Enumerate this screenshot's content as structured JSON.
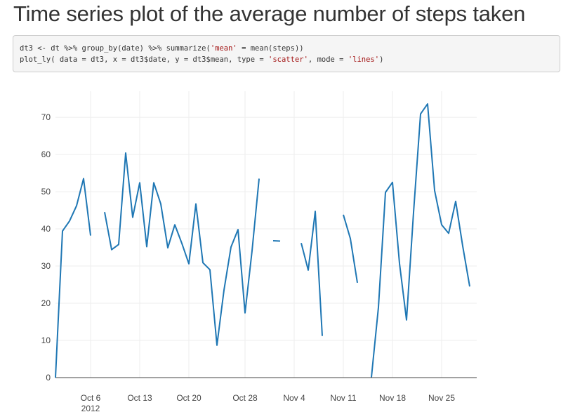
{
  "page": {
    "title": "Time series plot of the average number of steps taken"
  },
  "code": {
    "line1": {
      "a": "dt3 <- dt %>% group_by(date) %>% summarize(",
      "s1": "'mean'",
      "b": " = mean(steps))"
    },
    "line2": {
      "a": "plot_ly( data = dt3, x = dt3$date, y = dt3$mean, type = ",
      "s1": "'scatter'",
      "b": ", mode = ",
      "s2": "'lines'",
      "c": ")"
    }
  },
  "chart_data": {
    "type": "line",
    "title": "",
    "xlabel": "",
    "ylabel": "",
    "grid": true,
    "line_color": "#1f77b4",
    "x_range": [
      "2012-10-01",
      "2012-11-30"
    ],
    "ylim": [
      0,
      77
    ],
    "y_ticks": [
      0,
      10,
      20,
      30,
      40,
      50,
      60,
      70
    ],
    "x_ticks": [
      {
        "date": "2012-10-06",
        "label": "Oct 6",
        "sublabel": "2012"
      },
      {
        "date": "2012-10-13",
        "label": "Oct 13"
      },
      {
        "date": "2012-10-20",
        "label": "Oct 20"
      },
      {
        "date": "2012-10-28",
        "label": "Oct 28"
      },
      {
        "date": "2012-11-04",
        "label": "Nov 4"
      },
      {
        "date": "2012-11-11",
        "label": "Nov 11"
      },
      {
        "date": "2012-11-18",
        "label": "Nov 18"
      },
      {
        "date": "2012-11-25",
        "label": "Nov 25"
      }
    ],
    "series": [
      {
        "x": [
          "2012-10-01",
          "2012-10-02",
          "2012-10-03",
          "2012-10-04",
          "2012-10-05",
          "2012-10-06",
          "2012-10-07",
          "2012-10-08",
          "2012-10-09",
          "2012-10-10",
          "2012-10-11",
          "2012-10-12",
          "2012-10-13",
          "2012-10-14",
          "2012-10-15",
          "2012-10-16",
          "2012-10-17",
          "2012-10-18",
          "2012-10-19",
          "2012-10-20",
          "2012-10-21",
          "2012-10-22",
          "2012-10-23",
          "2012-10-24",
          "2012-10-25",
          "2012-10-26",
          "2012-10-27",
          "2012-10-28",
          "2012-10-29",
          "2012-10-30",
          "2012-10-31",
          "2012-11-01",
          "2012-11-02",
          "2012-11-03",
          "2012-11-04",
          "2012-11-05",
          "2012-11-06",
          "2012-11-07",
          "2012-11-08",
          "2012-11-09",
          "2012-11-10",
          "2012-11-11",
          "2012-11-12",
          "2012-11-13",
          "2012-11-14",
          "2012-11-15",
          "2012-11-16",
          "2012-11-17",
          "2012-11-18",
          "2012-11-19",
          "2012-11-20",
          "2012-11-21",
          "2012-11-22",
          "2012-11-23",
          "2012-11-24",
          "2012-11-25",
          "2012-11-26",
          "2012-11-27",
          "2012-11-28",
          "2012-11-29",
          "2012-11-30"
        ],
        "y": [
          0,
          39.4,
          42.1,
          46.2,
          53.5,
          38.2,
          null,
          44.5,
          34.4,
          35.8,
          60.4,
          43.1,
          52.4,
          35.2,
          52.4,
          46.7,
          34.9,
          41.1,
          36.1,
          30.6,
          46.7,
          30.9,
          29.0,
          8.7,
          23.5,
          35.1,
          39.8,
          17.4,
          34.1,
          53.5,
          null,
          36.8,
          36.7,
          null,
          null,
          36.2,
          28.9,
          44.7,
          11.2,
          null,
          null,
          43.8,
          37.4,
          25.5,
          null,
          0.1,
          18.9,
          49.8,
          52.5,
          30.7,
          15.5,
          44.4,
          70.9,
          73.6,
          50.3,
          41.1,
          38.8,
          47.4,
          35.4,
          24.5,
          null
        ]
      }
    ]
  }
}
